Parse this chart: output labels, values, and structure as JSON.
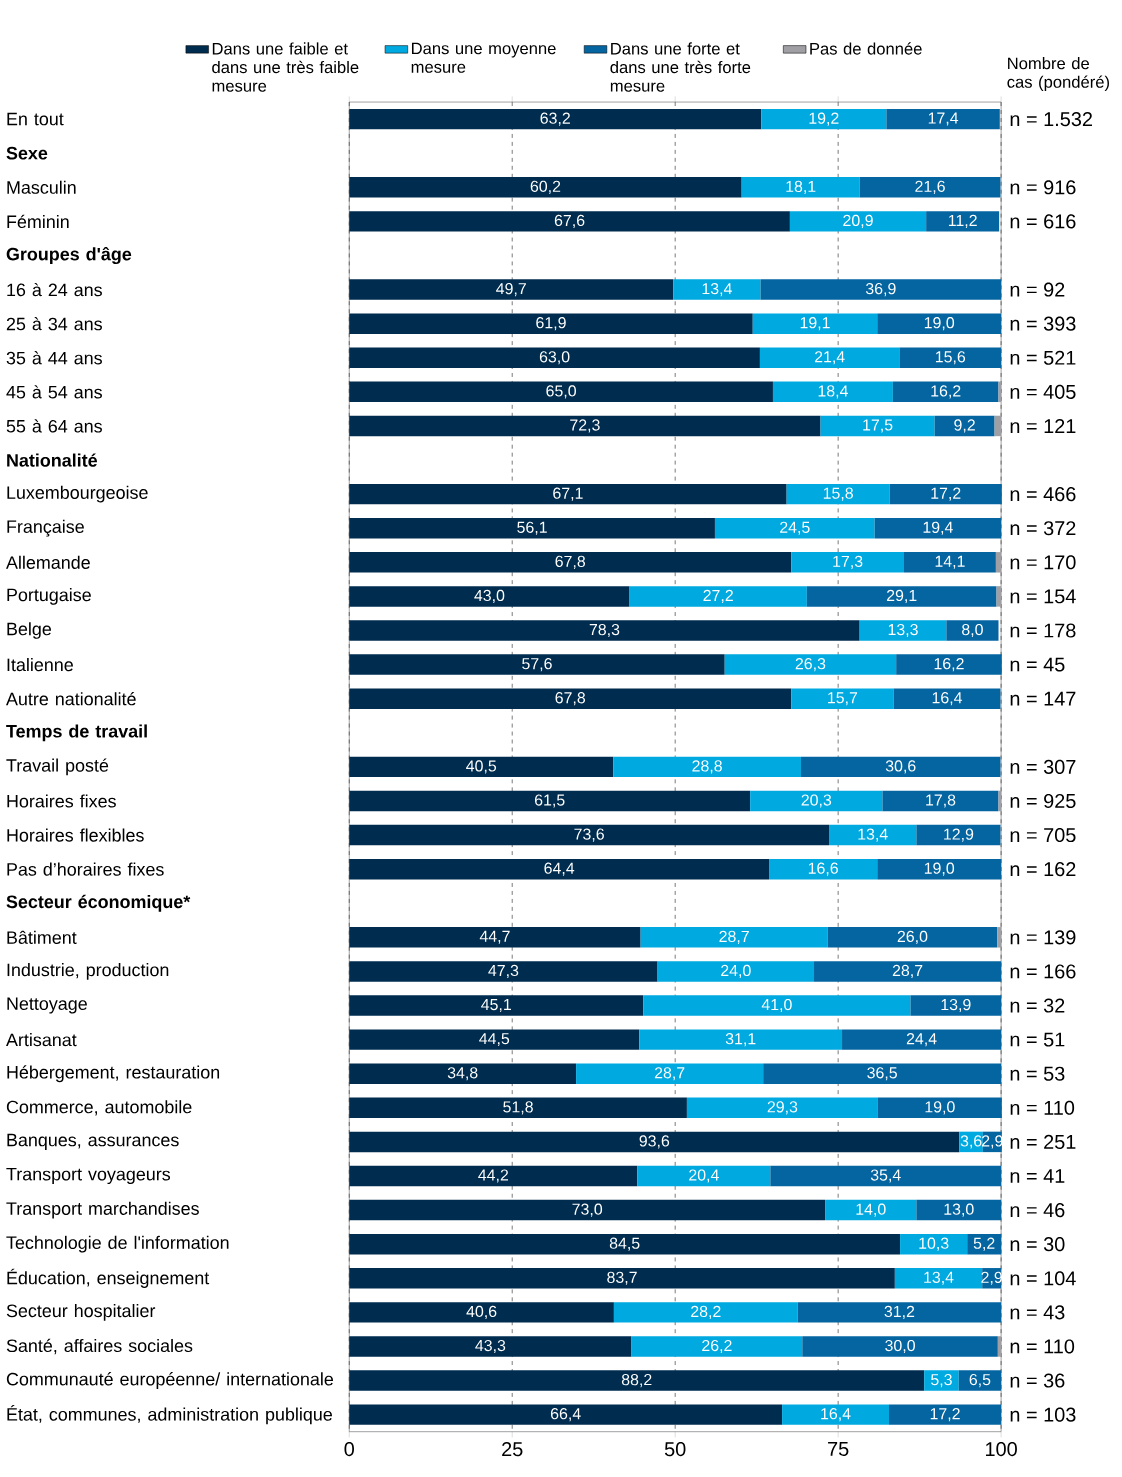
{
  "chart_data": {
    "type": "bar",
    "orientation": "horizontal",
    "stacked": true,
    "categories": [
      "En tout",
      "Sexe",
      "Masculin",
      "Féminin",
      "Groupes d'âge",
      "16 à 24 ans",
      "25 à 34 ans",
      "35 à 44 ans",
      "45 à 54 ans",
      "55 à 64 ans",
      "Nationalité",
      "Luxembourgeoise",
      "Française",
      "Allemande",
      "Portugaise",
      "Belge",
      "Italienne",
      "Autre nationalité",
      "Temps de travail",
      "Travail posté",
      "Horaires fixes",
      "Horaires flexibles",
      "Pas d’horaires fixes",
      "Secteur économique*",
      "Bâtiment",
      "Industrie, production",
      "Nettoyage",
      "Artisanat",
      "Hébergement, restauration",
      "Commerce, automobile",
      "Banques, assurances",
      "Transport voyageurs",
      "Transport marchandises",
      "Technologie de l'information",
      "Éducation, enseignement",
      "Secteur hospitalier",
      "Santé, affaires sociales",
      "Communauté européenne/ internationale",
      "État, communes, administration publique"
    ],
    "series": [
      {
        "name": "Dans une faible et dans une très faible mesure",
        "color": "#002d4f",
        "values": [
          63.2,
          null,
          60.2,
          67.6,
          null,
          49.7,
          61.9,
          63.0,
          65.0,
          72.3,
          null,
          67.1,
          56.1,
          67.8,
          43.0,
          78.3,
          57.6,
          67.8,
          null,
          40.5,
          61.5,
          73.6,
          64.4,
          null,
          44.7,
          47.3,
          45.1,
          44.5,
          34.8,
          51.8,
          93.6,
          44.2,
          73.0,
          84.5,
          83.7,
          40.6,
          43.3,
          88.2,
          66.4
        ],
        "value_labels": [
          "63,2",
          null,
          "60,2",
          "67,6",
          null,
          "49,7",
          "61,9",
          "63,0",
          "65,0",
          "72,3",
          null,
          "67,1",
          "56,1",
          "67,8",
          "43,0",
          "78,3",
          "57,6",
          "67,8",
          null,
          "40,5",
          "61,5",
          "73,6",
          "64,4",
          null,
          "44,7",
          "47,3",
          "45,1",
          "44,5",
          "34,8",
          "51,8",
          "93,6",
          "44,2",
          "73,0",
          "84,5",
          "83,7",
          "40,6",
          "43,3",
          "88,2",
          "66,4"
        ]
      },
      {
        "name": "Dans une moyenne mesure",
        "color": "#00a9e0",
        "values": [
          19.2,
          null,
          18.1,
          20.9,
          null,
          13.4,
          19.1,
          21.4,
          18.4,
          17.5,
          null,
          15.8,
          24.5,
          17.3,
          27.2,
          13.3,
          26.3,
          15.7,
          null,
          28.8,
          20.3,
          13.4,
          16.6,
          null,
          28.7,
          24.0,
          41.0,
          31.1,
          28.7,
          29.3,
          3.6,
          20.4,
          14.0,
          10.3,
          13.4,
          28.2,
          26.2,
          5.3,
          16.4
        ],
        "value_labels": [
          "19,2",
          null,
          "18,1",
          "20,9",
          null,
          "13,4",
          "19,1",
          "21,4",
          "18,4",
          "17,5",
          null,
          "15,8",
          "24,5",
          "17,3",
          "27,2",
          "13,3",
          "26,3",
          "15,7",
          null,
          "28,8",
          "20,3",
          "13,4",
          "16,6",
          null,
          "28,7",
          "24,0",
          "41,0",
          "31,1",
          "28,7",
          "29,3",
          "3,6",
          "20,4",
          "14,0",
          "10,3",
          "13,4",
          "28,2",
          "26,2",
          "5,3",
          "16,4"
        ]
      },
      {
        "name": "Dans une forte et dans une très forte mesure",
        "color": "#0565a0",
        "values": [
          17.4,
          null,
          21.6,
          11.2,
          null,
          36.9,
          19.0,
          15.6,
          16.2,
          9.2,
          null,
          17.2,
          19.4,
          14.1,
          29.1,
          8.0,
          16.2,
          16.4,
          null,
          30.6,
          17.8,
          12.9,
          19.0,
          null,
          26.0,
          28.7,
          13.9,
          24.4,
          36.5,
          19.0,
          2.9,
          35.4,
          13.0,
          5.2,
          2.9,
          31.2,
          30.0,
          6.5,
          17.2
        ],
        "value_labels": [
          "17,4",
          null,
          "21,6",
          "11,2",
          null,
          "36,9",
          "19,0",
          "15,6",
          "16,2",
          "9,2",
          null,
          "17,2",
          "19,4",
          "14,1",
          "29,1",
          "8,0",
          "16,2",
          "16,4",
          null,
          "30,6",
          "17,8",
          "12,9",
          "19,0",
          null,
          "26,0",
          "28,7",
          "13,9",
          "24,4",
          "36,5",
          "19,0",
          "2,9",
          "35,4",
          "13,0",
          "5,2",
          "2,9",
          "31,2",
          "30,0",
          "6,5",
          "17,2"
        ]
      },
      {
        "name": "Pas de donnée",
        "color": "#a0a0a4",
        "values": [
          null,
          null,
          null,
          null,
          null,
          null,
          null,
          null,
          0.4,
          1.0,
          null,
          null,
          null,
          0.8,
          0.7,
          null,
          null,
          null,
          null,
          null,
          0.4,
          null,
          null,
          null,
          0.6,
          null,
          null,
          null,
          null,
          null,
          null,
          null,
          null,
          null,
          null,
          null,
          0.5,
          null,
          null
        ]
      }
    ],
    "xlim": [
      0,
      100
    ],
    "xticks": [
      0,
      25,
      50,
      75,
      100
    ],
    "grid": "x",
    "legend": "top",
    "annotations": [
      "Nombre de cas (pondéré)",
      "n = 1.532",
      "n = 916",
      "n = 616",
      "n = 92",
      "n = 393",
      "n = 521",
      "n = 405",
      "n = 121",
      "n = 466",
      "n = 372",
      "n = 170",
      "n = 154",
      "n = 178",
      "n = 45",
      "n = 147",
      "n = 307",
      "n = 925",
      "n = 705",
      "n = 162",
      "n = 139",
      "n = 166",
      "n = 32",
      "n = 51",
      "n = 53",
      "n = 110",
      "n = 251",
      "n = 41",
      "n = 46",
      "n = 30",
      "n = 104",
      "n = 43",
      "n = 110",
      "n = 36",
      "n = 103"
    ]
  }
}
